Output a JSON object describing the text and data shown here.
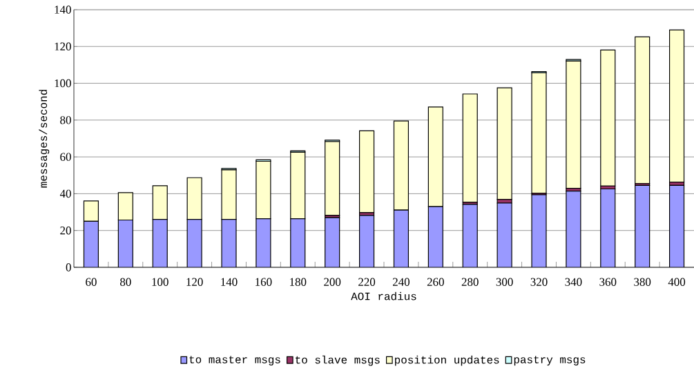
{
  "chart_data": {
    "type": "bar",
    "stacked": true,
    "xlabel": "AOI radius",
    "ylabel": "messages/second",
    "categories": [
      "60",
      "80",
      "100",
      "120",
      "140",
      "160",
      "180",
      "200",
      "220",
      "240",
      "260",
      "280",
      "300",
      "320",
      "340",
      "360",
      "380",
      "400"
    ],
    "series": [
      {
        "name": "to master msgs",
        "color": "#9999ff",
        "values": [
          25,
          25.7,
          26,
          26,
          26,
          26.4,
          26.4,
          27,
          28.2,
          31.1,
          33,
          34.2,
          34.9,
          39.4,
          41.4,
          42.6,
          44.5,
          44.5
        ]
      },
      {
        "name": "to slave msgs",
        "color": "#993366",
        "values": [
          null,
          null,
          null,
          null,
          null,
          null,
          null,
          1.2,
          1.5,
          null,
          null,
          1.1,
          2,
          0.8,
          1.5,
          1.6,
          1,
          1.8
        ]
      },
      {
        "name": "position updates",
        "color": "#ffffcc",
        "values": [
          11.1,
          14.9,
          18.3,
          22.7,
          27,
          31.2,
          36.1,
          40.1,
          44.5,
          48.4,
          54.1,
          58.9,
          60.6,
          65.5,
          69.2,
          73.9,
          79.7,
          82.7
        ]
      },
      {
        "name": "pastry msgs",
        "color": "#ccffff",
        "values": [
          null,
          null,
          null,
          null,
          0.7,
          0.8,
          0.8,
          0.8,
          null,
          null,
          null,
          null,
          null,
          0.7,
          0.8,
          null,
          null,
          null
        ]
      }
    ],
    "ylim": [
      0,
      140
    ],
    "yticks": [
      0,
      20,
      40,
      60,
      80,
      100,
      120,
      140
    ],
    "grid": "y",
    "legend": "bottom"
  }
}
